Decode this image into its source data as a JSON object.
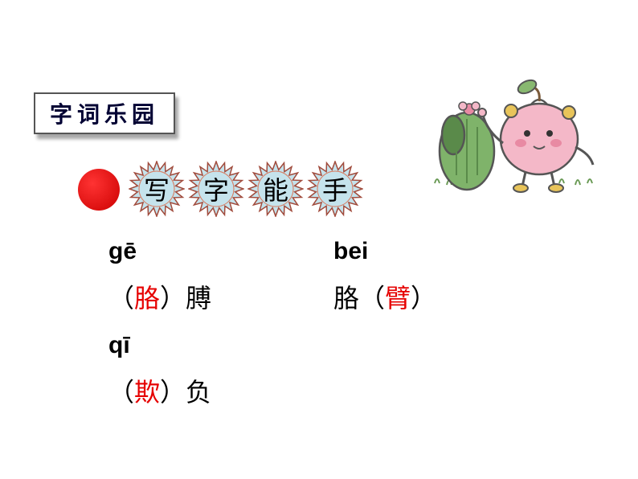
{
  "title": "字词乐园",
  "subtitle_chars": [
    "写",
    "字",
    "能",
    "手"
  ],
  "badge": {
    "fill": "#c5e3ec",
    "stroke": "#a14b3c",
    "inner_stroke": "#d97a5e"
  },
  "red_dot_color_outer": "#cc0000",
  "red_dot_color_inner": "#ff3333",
  "entries": [
    {
      "pinyin": "gē",
      "paren_char": "胳",
      "paren_color": "red",
      "suffix": "膊",
      "layout": "paren-left"
    },
    {
      "pinyin": "bei",
      "prefix": "胳",
      "paren_char": "臂",
      "paren_color": "red",
      "layout": "paren-right"
    },
    {
      "pinyin": "qī",
      "paren_char": "欺",
      "paren_color": "red",
      "suffix": "负",
      "layout": "paren-left"
    }
  ],
  "paren_open": "（",
  "paren_close": "）",
  "colors": {
    "red": "#e60000",
    "black": "#000000",
    "title_text": "#000033",
    "background": "#ffffff"
  },
  "illustration": {
    "apple_body": "#f4b8c8",
    "apple_blush": "#e88aa3",
    "cactus": "#7fb36a",
    "cactus_dark": "#5a8a4a",
    "leaf": "#88b870",
    "accent": "#e8c45a",
    "outline": "#555555"
  }
}
